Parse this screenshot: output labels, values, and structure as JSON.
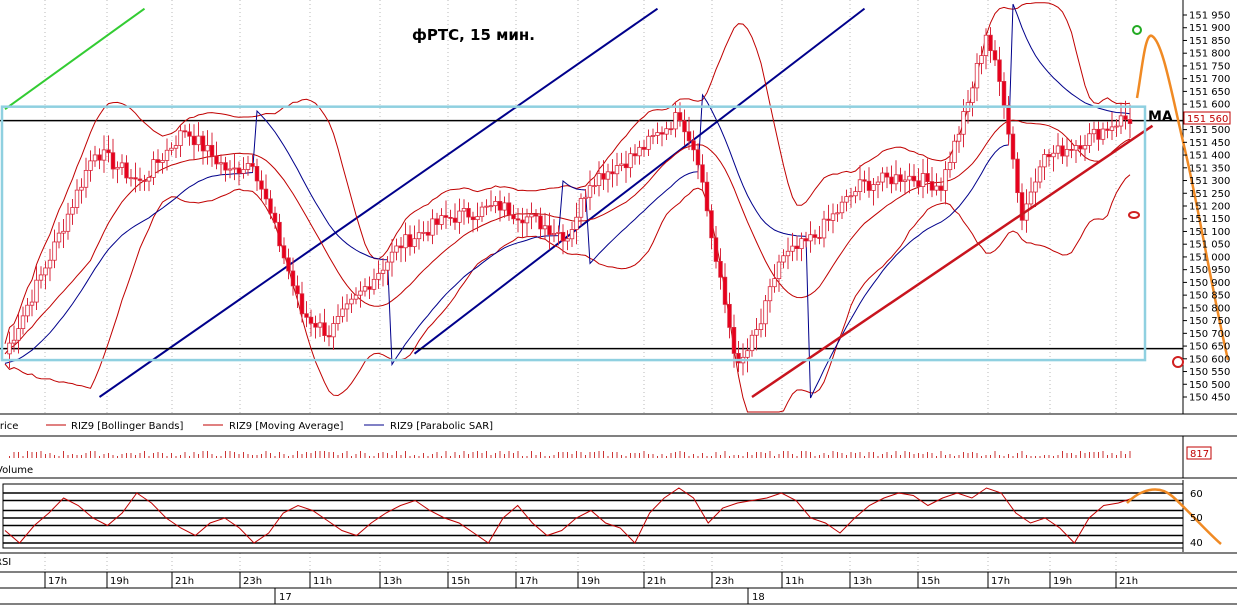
{
  "title": "фРТС,  15 мин.",
  "colors": {
    "bull": "#ffffff",
    "bear": "#e8001c",
    "candle_edge": "#d8283c",
    "bollinger": "#c00000",
    "ma": "#c00000",
    "sar": "#00008b",
    "channel": "#00008b",
    "box": "#8fd0e0",
    "support": "#c8141e",
    "forecast": "#f08a24",
    "green": "#33cc33"
  },
  "legend": [
    {
      "label": "Price"
    },
    {
      "label": "RIZ9 [Bollinger Bands]"
    },
    {
      "label": "RIZ9 [Moving Average]"
    },
    {
      "label": "RIZ9 [Parabolic SAR]"
    }
  ],
  "last_price": "151 560",
  "ma_label": "MA",
  "volume": {
    "label": "Volume",
    "value": "817"
  },
  "rsi": {
    "label": "RSI",
    "ticks": [
      "60",
      "50",
      "40"
    ],
    "ylim": [
      38,
      62
    ]
  },
  "time_axis": {
    "hours": [
      "17h",
      "19h",
      "21h",
      "23h",
      "11h",
      "13h",
      "15h",
      "17h",
      "19h",
      "21h",
      "23h",
      "11h",
      "13h",
      "15h",
      "17h",
      "19h",
      "21h"
    ],
    "days": [
      "17",
      "18"
    ]
  },
  "chart_data": {
    "type": "candlestick",
    "title": "фРТС,  15 мин.",
    "ylim": [
      150450,
      151975
    ],
    "y_ticks": [
      "151 950",
      "151 900",
      "151 850",
      "151 800",
      "151 750",
      "151 700",
      "151 650",
      "151 600",
      "151 550",
      "151 500",
      "151 450",
      "151 400",
      "151 350",
      "151 300",
      "151 250",
      "151 200",
      "151 150",
      "151 100",
      "151 050",
      "151 000",
      "150 950",
      "150 900",
      "150 850",
      "150 800",
      "150 750",
      "150 700",
      "150 650",
      "150 600",
      "150 550",
      "150 500",
      "150 450"
    ],
    "close_points": [
      {
        "t": 0,
        "close": 150620
      },
      {
        "t": 10,
        "close": 151000
      },
      {
        "t": 20,
        "close": 151420
      },
      {
        "t": 30,
        "close": 151290
      },
      {
        "t": 40,
        "close": 151500
      },
      {
        "t": 50,
        "close": 151330
      },
      {
        "t": 55,
        "close": 151380
      },
      {
        "t": 62,
        "close": 151000
      },
      {
        "t": 66,
        "close": 150780
      },
      {
        "t": 72,
        "close": 150700
      },
      {
        "t": 80,
        "close": 150880
      },
      {
        "t": 88,
        "close": 151050
      },
      {
        "t": 98,
        "close": 151150
      },
      {
        "t": 110,
        "close": 151200
      },
      {
        "t": 118,
        "close": 151140
      },
      {
        "t": 125,
        "close": 151080
      },
      {
        "t": 130,
        "close": 151300
      },
      {
        "t": 140,
        "close": 151400
      },
      {
        "t": 150,
        "close": 151560
      },
      {
        "t": 154,
        "close": 151390
      },
      {
        "t": 158,
        "close": 150980
      },
      {
        "t": 163,
        "close": 150560
      },
      {
        "t": 168,
        "close": 150740
      },
      {
        "t": 172,
        "close": 150980
      },
      {
        "t": 180,
        "close": 151080
      },
      {
        "t": 190,
        "close": 151280
      },
      {
        "t": 200,
        "close": 151320
      },
      {
        "t": 208,
        "close": 151280
      },
      {
        "t": 214,
        "close": 151600
      },
      {
        "t": 218,
        "close": 151880
      },
      {
        "t": 222,
        "close": 151620
      },
      {
        "t": 226,
        "close": 151150
      },
      {
        "t": 230,
        "close": 151380
      },
      {
        "t": 240,
        "close": 151460
      },
      {
        "t": 248,
        "close": 151540
      }
    ],
    "price_lines": [
      151535,
      150640
    ],
    "box": {
      "top": 151590,
      "bottom": 150595
    },
    "channel_lines": [
      {
        "from": [
          21,
          150450
        ],
        "to": [
          145,
          151975
        ]
      },
      {
        "from": [
          91,
          150620
        ],
        "to": [
          191,
          151975
        ]
      }
    ],
    "support_line": {
      "from": [
        166,
        150450
      ],
      "to": [
        255,
        151515
      ]
    },
    "green_line": {
      "from": [
        0,
        151580
      ],
      "to": [
        31,
        151975
      ]
    },
    "rsi_values": [
      45,
      40,
      47,
      52,
      58,
      55,
      50,
      47,
      52,
      60,
      56,
      50,
      46,
      43,
      48,
      50,
      46,
      40,
      44,
      52,
      55,
      53,
      49,
      45,
      43,
      48,
      52,
      55,
      57,
      53,
      50,
      48,
      44,
      40,
      50,
      55,
      48,
      43,
      45,
      50,
      53,
      48,
      46,
      40,
      52,
      58,
      62,
      58,
      48,
      54,
      56,
      57,
      58,
      60,
      57,
      50,
      48,
      44,
      50,
      55,
      58,
      60,
      59,
      55,
      58,
      60,
      58,
      62,
      60,
      52,
      48,
      50,
      46,
      40,
      50,
      55,
      56,
      58
    ]
  }
}
